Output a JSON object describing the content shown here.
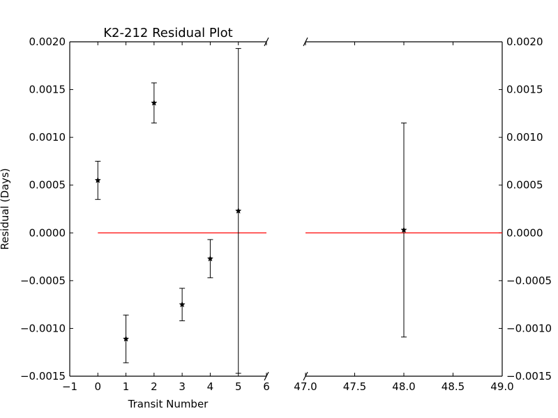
{
  "chart_data": {
    "type": "scatter",
    "title": "K2-212 Residual Plot",
    "xlabel": "Transit Number",
    "ylabel": "Residual (Days)",
    "broken_x_axis": true,
    "ylim": [
      -0.0015,
      0.002
    ],
    "yticks": [
      "0.0020",
      "0.0015",
      "0.0010",
      "0.0005",
      "0.0000",
      "−0.0005",
      "−0.0010",
      "−0.0015"
    ],
    "ytick_values": [
      0.002,
      0.0015,
      0.001,
      0.0005,
      0.0,
      -0.0005,
      -0.001,
      -0.0015
    ],
    "panels": [
      {
        "name": "left",
        "xlim": [
          -1,
          6
        ],
        "xticks": [
          "−1",
          "0",
          "1",
          "2",
          "3",
          "4",
          "5",
          "6"
        ],
        "xtick_values": [
          -1,
          0,
          1,
          2,
          3,
          4,
          5,
          6
        ],
        "yaxis_side": "left",
        "zero_line_x": [
          0,
          6
        ]
      },
      {
        "name": "right",
        "xlim": [
          47.0,
          49.0
        ],
        "xticks": [
          "47.0",
          "47.5",
          "48.0",
          "48.5",
          "49.0"
        ],
        "xtick_values": [
          47.0,
          47.5,
          48.0,
          48.5,
          49.0
        ],
        "yaxis_side": "right",
        "zero_line_x": [
          47.0,
          49.0
        ]
      }
    ],
    "points": [
      {
        "x": 0,
        "y": 0.00055,
        "err": 0.0002
      },
      {
        "x": 1,
        "y": -0.00111,
        "err": 0.00025
      },
      {
        "x": 2,
        "y": 0.00136,
        "err": 0.00021
      },
      {
        "x": 3,
        "y": -0.00075,
        "err": 0.00017
      },
      {
        "x": 4,
        "y": -0.00027,
        "err": 0.0002
      },
      {
        "x": 5,
        "y": 0.00023,
        "err": 0.0017
      },
      {
        "x": 48,
        "y": 3e-05,
        "err": 0.00112
      }
    ],
    "marker": "star",
    "point_color": "#000000",
    "zero_line_color": "#ff0000",
    "grid": false
  }
}
